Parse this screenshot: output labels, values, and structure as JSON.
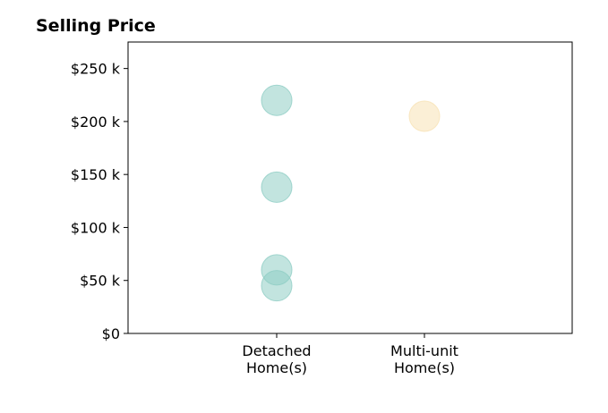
{
  "chart_data": {
    "type": "scatter",
    "title": "Selling Price",
    "xlabel": "",
    "ylabel": "",
    "categories": [
      [
        "Detached",
        "Home(s)"
      ],
      [
        "Multi-unit",
        "Home(s)"
      ]
    ],
    "yticks": [
      0,
      50000,
      100000,
      150000,
      200000,
      250000
    ],
    "ytick_labels": [
      "$0",
      "$50 k",
      "$100 k",
      "$150 k",
      "$200 k",
      "$250 k"
    ],
    "ylim": [
      0,
      275000
    ],
    "grid": false,
    "series": [
      {
        "category": 0,
        "color": "#8fcdc4",
        "values": [
          220000,
          138000,
          60000,
          45000
        ]
      },
      {
        "category": 1,
        "color": "#f7e2b5",
        "values": [
          205000
        ]
      }
    ]
  }
}
